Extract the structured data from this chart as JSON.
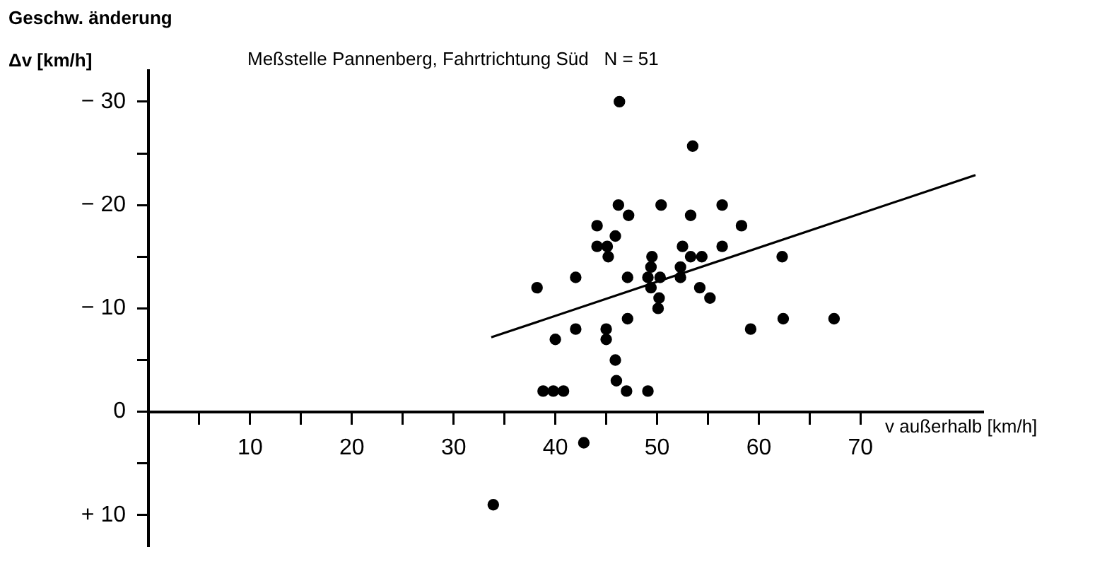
{
  "chart_data": {
    "type": "scatter",
    "title": "Meßstelle Pannenberg, Fahrtrichtung Süd   N = 51",
    "xlabel": "v außerhalb [km/h]",
    "ylabel": "Geschw. änderung Δv [km/h]",
    "xlim": [
      0,
      82
    ],
    "xticks": [
      {
        "value": 5,
        "label": null
      },
      10,
      {
        "value": 15,
        "label": null
      },
      20,
      {
        "value": 25,
        "label": null
      },
      30,
      {
        "value": 35,
        "label": null
      },
      40,
      {
        "value": 45,
        "label": null
      },
      50,
      {
        "value": 55,
        "label": null
      },
      60,
      {
        "value": 65,
        "label": null
      },
      70
    ],
    "ylim": [
      13,
      -33
    ],
    "yticks": [
      {
        "value": -30,
        "label": "− 30"
      },
      {
        "value": -25,
        "label": null
      },
      {
        "value": -20,
        "label": "− 20"
      },
      {
        "value": -15,
        "label": null
      },
      {
        "value": -10,
        "label": "− 10"
      },
      {
        "value": -5,
        "label": null
      },
      0,
      {
        "value": 5,
        "label": null
      },
      {
        "value": 10,
        "label": "+ 10"
      }
    ],
    "grid": false,
    "legend": false,
    "marker": "circle",
    "color": "#000000",
    "series": [
      {
        "color": "#000000",
        "x": [
          46.3,
          53.5,
          46.2,
          50.4,
          56.4,
          53.3,
          47.2,
          44.1,
          58.3,
          45.9,
          44.1,
          45.1,
          45.2,
          52.5,
          56.4,
          49.5,
          53.3,
          54.4,
          62.3,
          49.4,
          52.3,
          42,
          47.1,
          49.1,
          50.3,
          52.3,
          38.2,
          49.4,
          54.2,
          50.2,
          55.2,
          50.1,
          42,
          47.1,
          45,
          59.2,
          62.4,
          40,
          45,
          45.9,
          46,
          38.8,
          39.8,
          40.8,
          47,
          49.1,
          67.4,
          42.8,
          33.9
        ],
        "values": [
          -30,
          -25.7,
          -20,
          -20,
          -20,
          -19,
          -19,
          -18,
          -18,
          -17,
          -16,
          -16,
          -15,
          -16,
          -16,
          -15,
          -15,
          -15,
          -15,
          -14,
          -14,
          -13,
          -13,
          -13,
          -13,
          -13,
          -12,
          -12,
          -12,
          -11,
          -11,
          -10,
          -8,
          -9,
          -8,
          -8,
          -9,
          -7,
          -7,
          -5,
          -3,
          -2,
          -2,
          -2,
          -2,
          -2,
          -9,
          3,
          9
        ]
      },
      {
        "type": "line",
        "color": "#000000",
        "marker": "none",
        "x": [
          33.7,
          81.3
        ],
        "values": [
          -7.2,
          -22.9
        ]
      }
    ]
  }
}
